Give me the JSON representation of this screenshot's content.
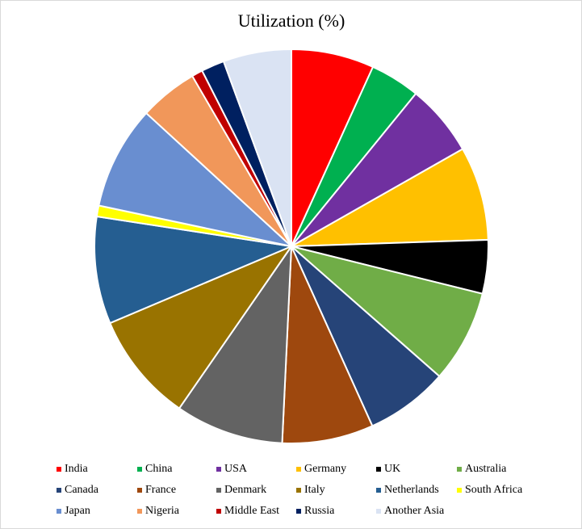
{
  "chart_data": {
    "type": "pie",
    "title": "Utilization (%)",
    "categories": [
      "India",
      "China",
      "USA",
      "Germany",
      "UK",
      "Australia",
      "Canada",
      "France",
      "Denmark",
      "Italy",
      "Netherlands",
      "South Africa",
      "Japan",
      "Nigeria",
      "Middle East",
      "Russia",
      "Another Asia"
    ],
    "values": [
      6.8,
      4.1,
      5.9,
      7.7,
      4.4,
      7.6,
      6.8,
      7.5,
      8.9,
      9.0,
      8.8,
      0.9,
      8.5,
      4.8,
      0.9,
      1.9,
      5.6
    ],
    "colors": [
      "#ff0000",
      "#00b050",
      "#7030a0",
      "#ffc000",
      "#000000",
      "#70ad47",
      "#264478",
      "#9e480e",
      "#636363",
      "#997300",
      "#255e91",
      "#ffff00",
      "#698ed0",
      "#f1975a",
      "#c00000",
      "#002060",
      "#dae3f3"
    ],
    "legend": "bottom"
  }
}
